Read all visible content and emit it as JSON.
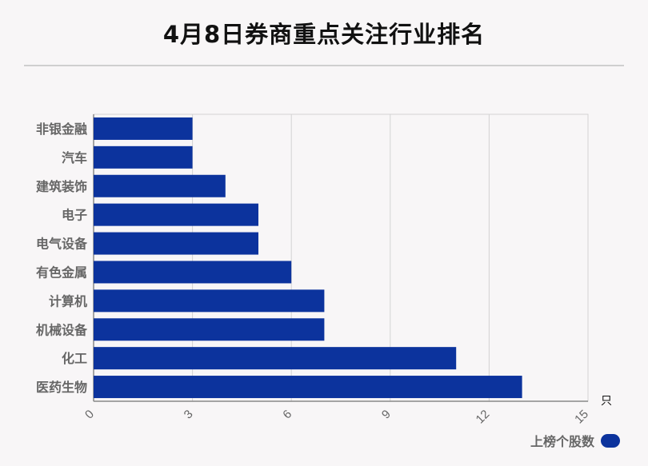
{
  "chart_data": {
    "type": "bar",
    "orientation": "horizontal",
    "title": "4月8日券商重点关注行业排名",
    "categories": [
      "非银金融",
      "汽车",
      "建筑装饰",
      "电子",
      "电气设备",
      "有色金属",
      "计算机",
      "机械设备",
      "化工",
      "医药生物"
    ],
    "series": [
      {
        "name": "上榜个股数",
        "values": [
          3,
          3,
          4,
          5,
          5,
          6,
          7,
          7,
          11,
          13
        ]
      }
    ],
    "xlabel": "只",
    "xlim": [
      0,
      15
    ],
    "xticks": [
      "0",
      "3",
      "6",
      "9",
      "12",
      "15"
    ],
    "grid": true,
    "legend_position": "bottom-right",
    "colors": {
      "bar": "#0c339d",
      "grid": "#d3d3d3",
      "axis": "#888888"
    }
  }
}
